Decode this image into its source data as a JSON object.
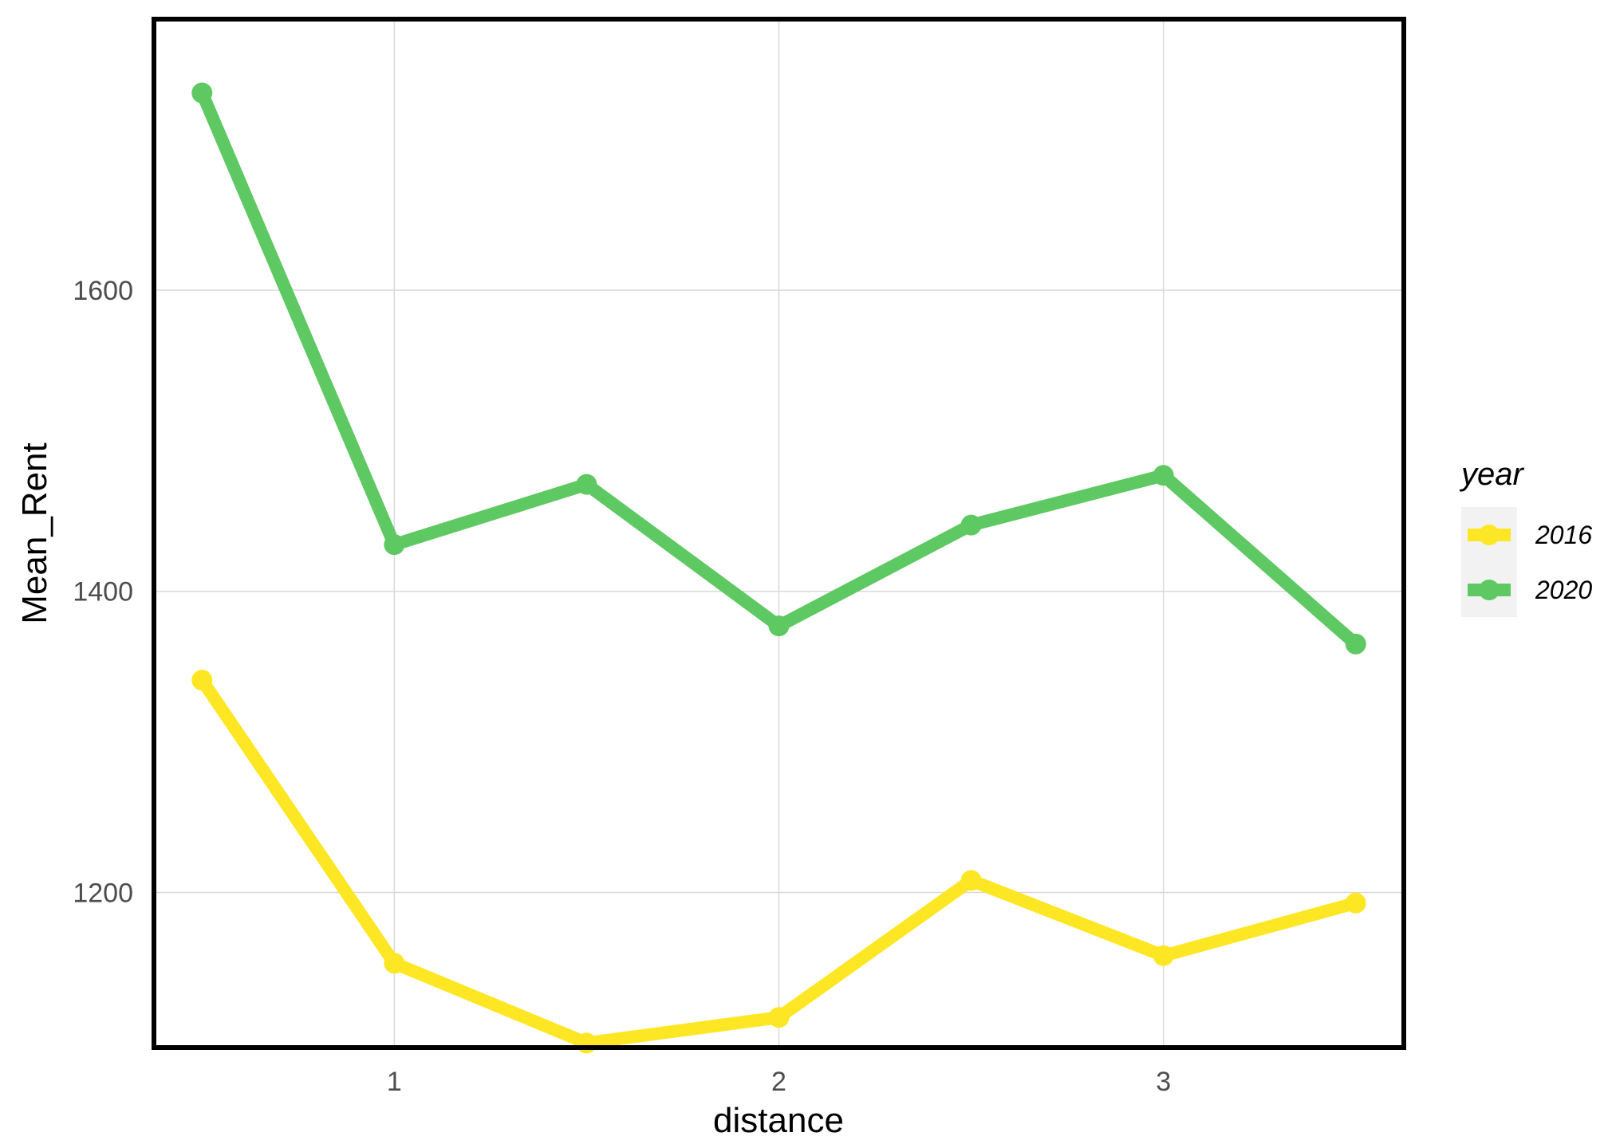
{
  "chart_data": {
    "type": "line",
    "xlabel": "distance",
    "ylabel": "Mean_Rent",
    "xlim": [
      0.375,
      3.625
    ],
    "ylim": [
      1097,
      1780
    ],
    "x_ticks": [
      1,
      2,
      3
    ],
    "y_ticks": [
      1200,
      1400,
      1600
    ],
    "grid": true,
    "legend": {
      "title": "year",
      "placement": "right"
    },
    "series": [
      {
        "name": "2016",
        "color": "#FDE725",
        "x": [
          0.5,
          1.0,
          1.5,
          2.0,
          2.5,
          3.0,
          3.5
        ],
        "y": [
          1341,
          1153,
          1100,
          1117,
          1208,
          1158,
          1193
        ]
      },
      {
        "name": "2020",
        "color": "#5EC962",
        "x": [
          0.5,
          1.0,
          1.5,
          2.0,
          2.5,
          3.0,
          3.5
        ],
        "y": [
          1731,
          1431,
          1471,
          1377,
          1444,
          1477,
          1365
        ]
      }
    ]
  }
}
